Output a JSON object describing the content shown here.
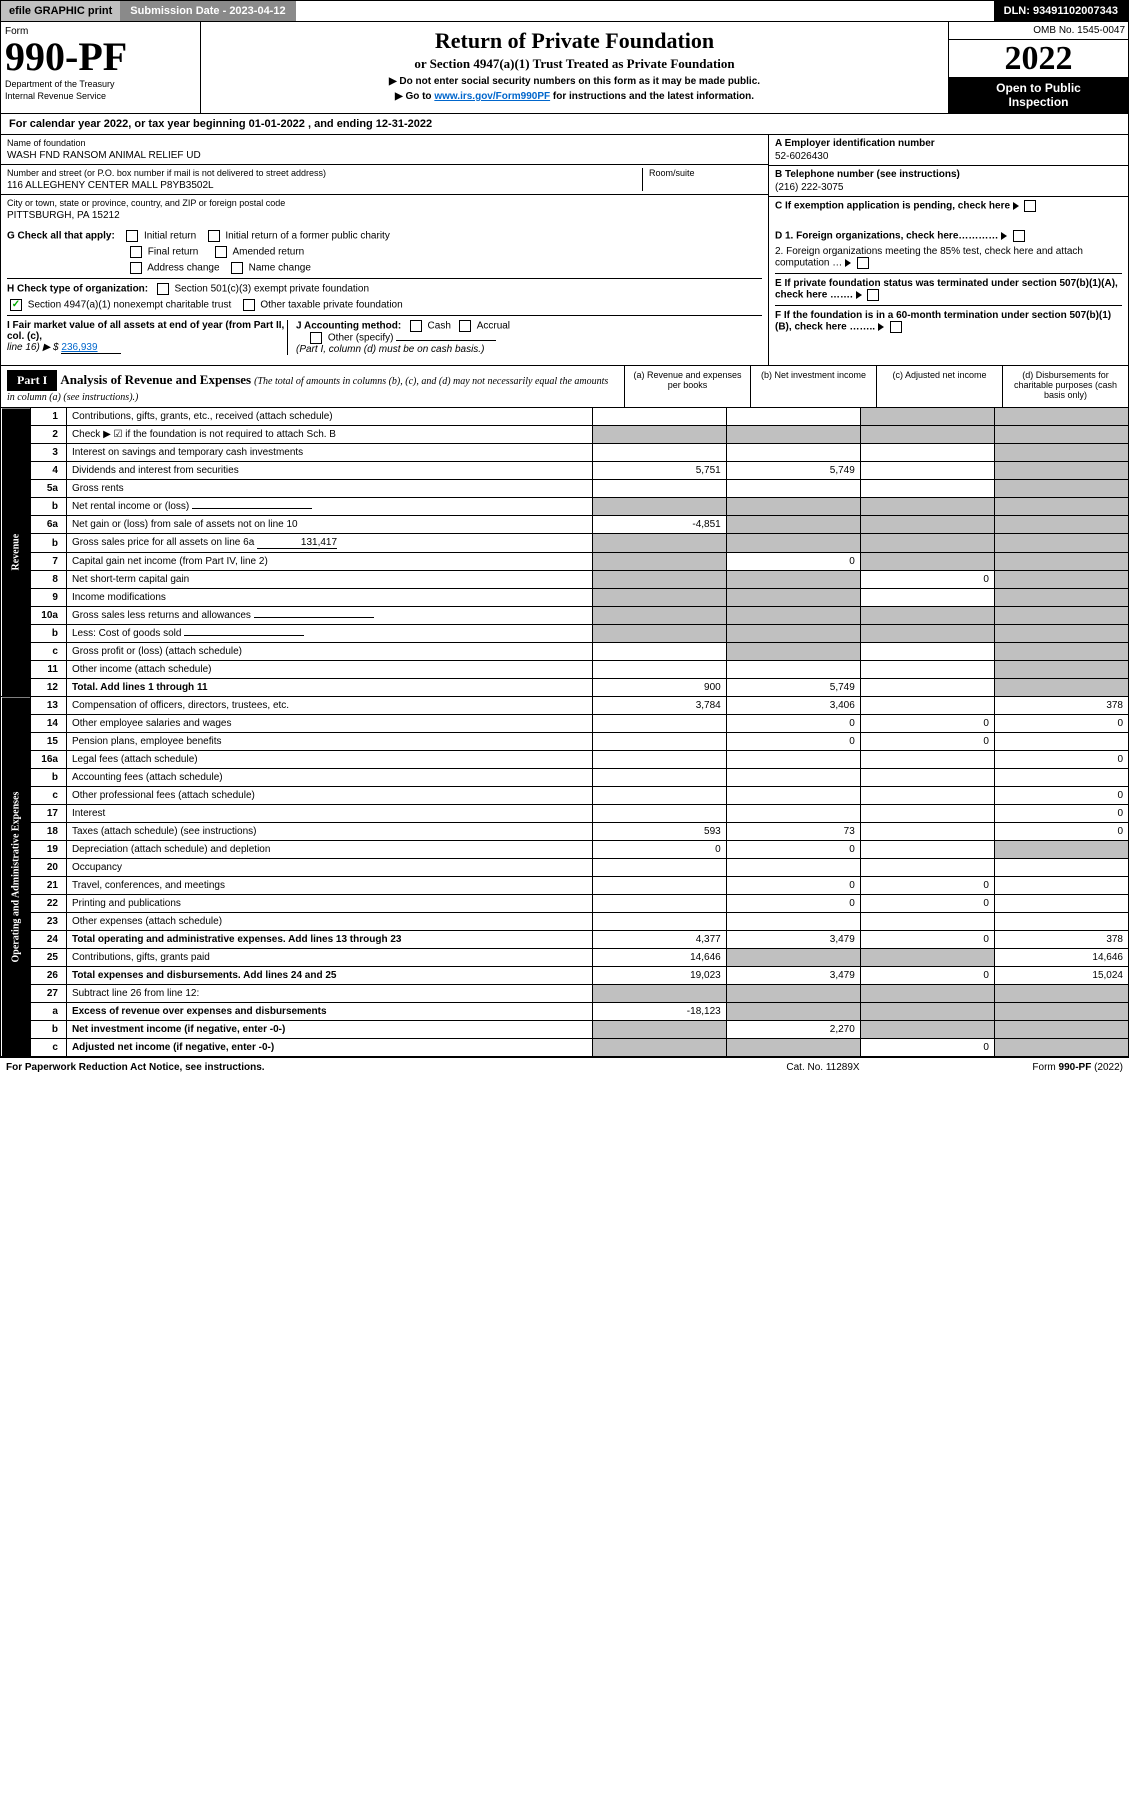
{
  "topbar": {
    "efile": "efile GRAPHIC print",
    "sub_label": "Submission Date - 2023-04-12",
    "dln": "DLN: 93491102007343"
  },
  "header": {
    "form": "Form",
    "number": "990-PF",
    "dept": "Department of the Treasury",
    "irs": "Internal Revenue Service",
    "title": "Return of Private Foundation",
    "subtitle": "or Section 4947(a)(1) Trust Treated as Private Foundation",
    "note1": "▶ Do not enter social security numbers on this form as it may be made public.",
    "note2_pre": "▶ Go to ",
    "note2_link": "www.irs.gov/Form990PF",
    "note2_post": " for instructions and the latest information.",
    "omb": "OMB No. 1545-0047",
    "year": "2022",
    "inspection1": "Open to Public",
    "inspection2": "Inspection"
  },
  "calyear": "For calendar year 2022, or tax year beginning 01-01-2022                    , and ending 12-31-2022",
  "id": {
    "name_label": "Name of foundation",
    "name": "WASH FND RANSOM ANIMAL RELIEF UD",
    "addr_label": "Number and street (or P.O. box number if mail is not delivered to street address)",
    "addr": "116 ALLEGHENY CENTER MALL P8YB3502L",
    "room_label": "Room/suite",
    "city_label": "City or town, state or province, country, and ZIP or foreign postal code",
    "city": "PITTSBURGH, PA  15212",
    "a_label": "A Employer identification number",
    "a_val": "52-6026430",
    "b_label": "B Telephone number (see instructions)",
    "b_val": "(216) 222-3075",
    "c_label": "C If exemption application is pending, check here"
  },
  "checks": {
    "g": "G Check all that apply:",
    "g_opts": [
      "Initial return",
      "Initial return of a former public charity",
      "Final return",
      "Amended return",
      "Address change",
      "Name change"
    ],
    "h": "H Check type of organization:",
    "h1": "Section 501(c)(3) exempt private foundation",
    "h2": "Section 4947(a)(1) nonexempt charitable trust",
    "h3": "Other taxable private foundation",
    "i": "I Fair market value of all assets at end of year (from Part II, col. (c),",
    "i_line": "line 16) ▶ $",
    "i_val": "236,939",
    "j": "J Accounting method:",
    "j_opts": [
      "Cash",
      "Accrual"
    ],
    "j_other": "Other (specify)",
    "j_note": "(Part I, column (d) must be on cash basis.)",
    "d1": "D 1. Foreign organizations, check here…………",
    "d2": "2. Foreign organizations meeting the 85% test, check here and attach computation …",
    "e": "E If private foundation status was terminated under section 507(b)(1)(A), check here …….",
    "f": "F If the foundation is in a 60-month termination under section 507(b)(1)(B), check here …….."
  },
  "part1": {
    "label": "Part I",
    "title": "Analysis of Revenue and Expenses",
    "note": "(The total of amounts in columns (b), (c), and (d) may not necessarily equal the amounts in column (a) (see instructions).)",
    "col_a": "(a) Revenue and expenses per books",
    "col_b": "(b) Net investment income",
    "col_c": "(c) Adjusted net income",
    "col_d": "(d) Disbursements for charitable purposes (cash basis only)"
  },
  "side": {
    "rev": "Revenue",
    "exp": "Operating and Administrative Expenses"
  },
  "rows": [
    {
      "n": "1",
      "d": "Contributions, gifts, grants, etc., received (attach schedule)",
      "a": "",
      "b": "",
      "c": "s",
      "ds": "s"
    },
    {
      "n": "2",
      "d": "Check ▶ ☑ if the foundation is not required to attach Sch. B",
      "a": "s",
      "b": "s",
      "c": "s",
      "ds": "s",
      "bold_not": true
    },
    {
      "n": "3",
      "d": "Interest on savings and temporary cash investments",
      "a": "",
      "b": "",
      "c": "",
      "ds": "s"
    },
    {
      "n": "4",
      "d": "Dividends and interest from securities",
      "a": "5,751",
      "b": "5,749",
      "c": "",
      "ds": "s"
    },
    {
      "n": "5a",
      "d": "Gross rents",
      "a": "",
      "b": "",
      "c": "",
      "ds": "s"
    },
    {
      "n": "b",
      "d": "Net rental income or (loss)",
      "a": "s",
      "b": "s",
      "c": "s",
      "ds": "s",
      "inline": true
    },
    {
      "n": "6a",
      "d": "Net gain or (loss) from sale of assets not on line 10",
      "a": "-4,851",
      "b": "s",
      "c": "s",
      "ds": "s"
    },
    {
      "n": "b",
      "d": "Gross sales price for all assets on line 6a",
      "a": "s",
      "b": "s",
      "c": "s",
      "ds": "s",
      "inline_val": "131,417"
    },
    {
      "n": "7",
      "d": "Capital gain net income (from Part IV, line 2)",
      "a": "s",
      "b": "0",
      "c": "s",
      "ds": "s"
    },
    {
      "n": "8",
      "d": "Net short-term capital gain",
      "a": "s",
      "b": "s",
      "c": "0",
      "ds": "s"
    },
    {
      "n": "9",
      "d": "Income modifications",
      "a": "s",
      "b": "s",
      "c": "",
      "ds": "s"
    },
    {
      "n": "10a",
      "d": "Gross sales less returns and allowances",
      "a": "s",
      "b": "s",
      "c": "s",
      "ds": "s",
      "inline": true
    },
    {
      "n": "b",
      "d": "Less: Cost of goods sold",
      "a": "s",
      "b": "s",
      "c": "s",
      "ds": "s",
      "inline": true
    },
    {
      "n": "c",
      "d": "Gross profit or (loss) (attach schedule)",
      "a": "",
      "b": "s",
      "c": "",
      "ds": "s"
    },
    {
      "n": "11",
      "d": "Other income (attach schedule)",
      "a": "",
      "b": "",
      "c": "",
      "ds": "s"
    },
    {
      "n": "12",
      "d": "Total. Add lines 1 through 11",
      "a": "900",
      "b": "5,749",
      "c": "",
      "ds": "s",
      "bold": true
    }
  ],
  "exp_rows": [
    {
      "n": "13",
      "d": "Compensation of officers, directors, trustees, etc.",
      "a": "3,784",
      "b": "3,406",
      "c": "",
      "ds": "378"
    },
    {
      "n": "14",
      "d": "Other employee salaries and wages",
      "a": "",
      "b": "0",
      "c": "0",
      "ds": "0"
    },
    {
      "n": "15",
      "d": "Pension plans, employee benefits",
      "a": "",
      "b": "0",
      "c": "0",
      "ds": ""
    },
    {
      "n": "16a",
      "d": "Legal fees (attach schedule)",
      "a": "",
      "b": "",
      "c": "",
      "ds": "0"
    },
    {
      "n": "b",
      "d": "Accounting fees (attach schedule)",
      "a": "",
      "b": "",
      "c": "",
      "ds": ""
    },
    {
      "n": "c",
      "d": "Other professional fees (attach schedule)",
      "a": "",
      "b": "",
      "c": "",
      "ds": "0"
    },
    {
      "n": "17",
      "d": "Interest",
      "a": "",
      "b": "",
      "c": "",
      "ds": "0"
    },
    {
      "n": "18",
      "d": "Taxes (attach schedule) (see instructions)",
      "a": "593",
      "b": "73",
      "c": "",
      "ds": "0"
    },
    {
      "n": "19",
      "d": "Depreciation (attach schedule) and depletion",
      "a": "0",
      "b": "0",
      "c": "",
      "ds": "s"
    },
    {
      "n": "20",
      "d": "Occupancy",
      "a": "",
      "b": "",
      "c": "",
      "ds": ""
    },
    {
      "n": "21",
      "d": "Travel, conferences, and meetings",
      "a": "",
      "b": "0",
      "c": "0",
      "ds": ""
    },
    {
      "n": "22",
      "d": "Printing and publications",
      "a": "",
      "b": "0",
      "c": "0",
      "ds": ""
    },
    {
      "n": "23",
      "d": "Other expenses (attach schedule)",
      "a": "",
      "b": "",
      "c": "",
      "ds": ""
    },
    {
      "n": "24",
      "d": "Total operating and administrative expenses. Add lines 13 through 23",
      "a": "4,377",
      "b": "3,479",
      "c": "0",
      "ds": "378",
      "bold": true
    },
    {
      "n": "25",
      "d": "Contributions, gifts, grants paid",
      "a": "14,646",
      "b": "s",
      "c": "s",
      "ds": "14,646"
    },
    {
      "n": "26",
      "d": "Total expenses and disbursements. Add lines 24 and 25",
      "a": "19,023",
      "b": "3,479",
      "c": "0",
      "ds": "15,024",
      "bold": true
    },
    {
      "n": "27",
      "d": "Subtract line 26 from line 12:",
      "a": "s",
      "b": "s",
      "c": "s",
      "ds": "s"
    },
    {
      "n": "a",
      "d": "Excess of revenue over expenses and disbursements",
      "a": "-18,123",
      "b": "s",
      "c": "s",
      "ds": "s",
      "bold": true
    },
    {
      "n": "b",
      "d": "Net investment income (if negative, enter -0-)",
      "a": "s",
      "b": "2,270",
      "c": "s",
      "ds": "s",
      "bold": true
    },
    {
      "n": "c",
      "d": "Adjusted net income (if negative, enter -0-)",
      "a": "s",
      "b": "s",
      "c": "0",
      "ds": "s",
      "bold": true
    }
  ],
  "footer": {
    "left": "For Paperwork Reduction Act Notice, see instructions.",
    "mid": "Cat. No. 11289X",
    "right": "Form 990-PF (2022)"
  }
}
